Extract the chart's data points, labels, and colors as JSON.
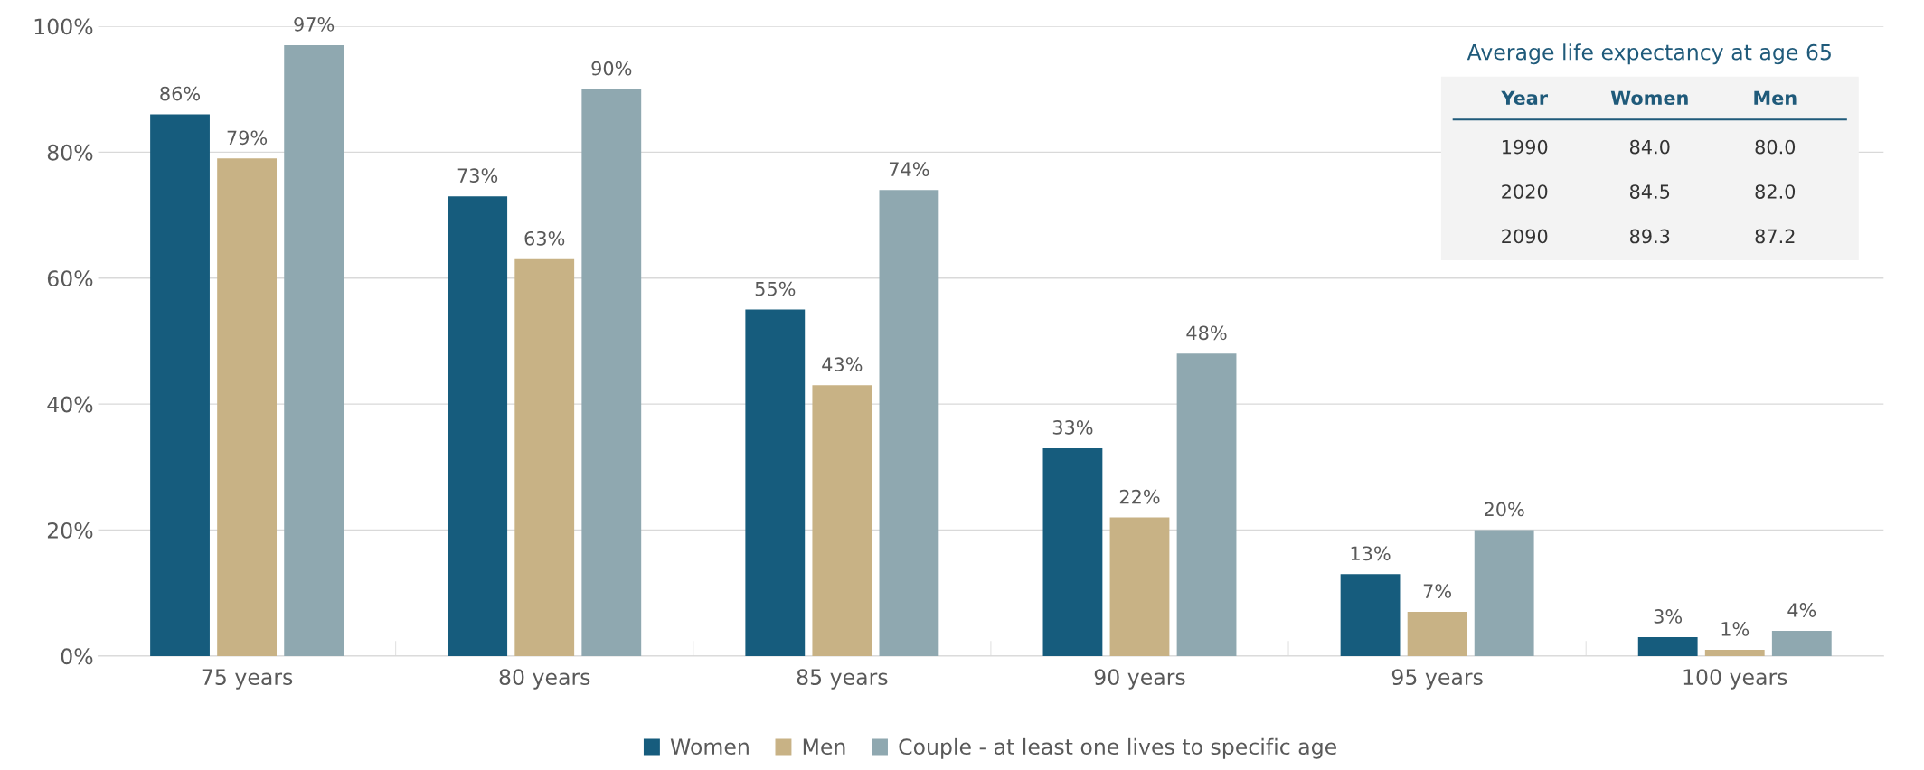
{
  "chart_data": [
    {
      "type": "bar",
      "categories": [
        "75 years",
        "80 years",
        "85 years",
        "90 years",
        "95 years",
        "100 years"
      ],
      "series": [
        {
          "name": "Women",
          "color": "#165c7d",
          "values": [
            86,
            73,
            55,
            33,
            13,
            3
          ],
          "value_labels": [
            "86%",
            "73%",
            "55%",
            "33%",
            "13%",
            "3%"
          ]
        },
        {
          "name": "Men",
          "color": "#c8b285",
          "values": [
            79,
            63,
            43,
            22,
            7,
            1
          ],
          "value_labels": [
            "79%",
            "63%",
            "43%",
            "22%",
            "7%",
            "1%"
          ]
        },
        {
          "name": "Couple - at least one lives to specific age",
          "color": "#8fa8b0",
          "values": [
            97,
            90,
            74,
            48,
            20,
            4
          ],
          "value_labels": [
            "97%",
            "90%",
            "74%",
            "48%",
            "20%",
            "4%"
          ]
        }
      ],
      "ylim": [
        0,
        100
      ],
      "yticks": [
        {
          "value": 0,
          "label": "0%"
        },
        {
          "value": 20,
          "label": "20%"
        },
        {
          "value": 40,
          "label": "40%"
        },
        {
          "value": 60,
          "label": "60%"
        },
        {
          "value": 80,
          "label": "80%"
        },
        {
          "value": 100,
          "label": "100%"
        }
      ],
      "grid": "y",
      "legend": "bottom"
    },
    {
      "type": "other",
      "title": "Average life expectancy at age 65",
      "xlabel": "Year",
      "categories": [
        "1990",
        "2020",
        "2090"
      ],
      "series": [
        {
          "name": "Women",
          "values": [
            84.0,
            84.5,
            89.3
          ],
          "value_labels": [
            "84.0",
            "84.5",
            "89.3"
          ]
        },
        {
          "name": "Men",
          "values": [
            80.0,
            82.0,
            87.2
          ],
          "value_labels": [
            "80.0",
            "82.0",
            "87.2"
          ]
        }
      ]
    }
  ]
}
